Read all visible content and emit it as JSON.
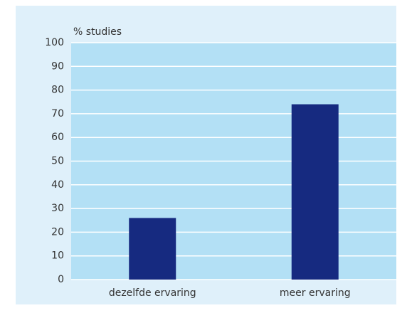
{
  "chart_data": {
    "type": "bar",
    "y_label": "% studies",
    "categories": [
      "dezelfde ervaring",
      "meer ervaring"
    ],
    "values": [
      26,
      74
    ],
    "color": "#162a80",
    "ylim": [
      0,
      100
    ],
    "yticks": [
      0,
      10,
      20,
      30,
      40,
      50,
      60,
      70,
      80,
      90,
      100
    ],
    "grid": true
  }
}
